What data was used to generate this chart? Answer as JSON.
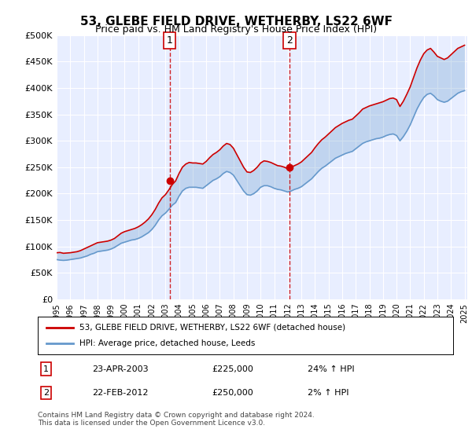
{
  "title": "53, GLEBE FIELD DRIVE, WETHERBY, LS22 6WF",
  "subtitle": "Price paid vs. HM Land Registry's House Price Index (HPI)",
  "footer": "Contains HM Land Registry data © Crown copyright and database right 2024.\nThis data is licensed under the Open Government Licence v3.0.",
  "legend_line1": "53, GLEBE FIELD DRIVE, WETHERBY, LS22 6WF (detached house)",
  "legend_line2": "HPI: Average price, detached house, Leeds",
  "sale1_date": "23-APR-2003",
  "sale1_price": 225000,
  "sale1_pct": "24% ↑ HPI",
  "sale2_date": "22-FEB-2012",
  "sale2_price": 250000,
  "sale2_pct": "2% ↑ HPI",
  "sale1_x": 2003.31,
  "sale2_x": 2012.13,
  "ylim": [
    0,
    500000
  ],
  "yticks": [
    0,
    50000,
    100000,
    150000,
    200000,
    250000,
    300000,
    350000,
    400000,
    450000,
    500000
  ],
  "ytick_labels": [
    "£0",
    "£50K",
    "£100K",
    "£150K",
    "£200K",
    "£250K",
    "£300K",
    "£350K",
    "£400K",
    "£450K",
    "£500K"
  ],
  "background_color": "#f0f4ff",
  "plot_bg": "#e8eeff",
  "red_color": "#cc0000",
  "blue_color": "#6699cc",
  "hpi_data": {
    "years": [
      1995.0,
      1995.25,
      1995.5,
      1995.75,
      1996.0,
      1996.25,
      1996.5,
      1996.75,
      1997.0,
      1997.25,
      1997.5,
      1997.75,
      1998.0,
      1998.25,
      1998.5,
      1998.75,
      1999.0,
      1999.25,
      1999.5,
      1999.75,
      2000.0,
      2000.25,
      2000.5,
      2000.75,
      2001.0,
      2001.25,
      2001.5,
      2001.75,
      2002.0,
      2002.25,
      2002.5,
      2002.75,
      2003.0,
      2003.25,
      2003.5,
      2003.75,
      2004.0,
      2004.25,
      2004.5,
      2004.75,
      2005.0,
      2005.25,
      2005.5,
      2005.75,
      2006.0,
      2006.25,
      2006.5,
      2006.75,
      2007.0,
      2007.25,
      2007.5,
      2007.75,
      2008.0,
      2008.25,
      2008.5,
      2008.75,
      2009.0,
      2009.25,
      2009.5,
      2009.75,
      2010.0,
      2010.25,
      2010.5,
      2010.75,
      2011.0,
      2011.25,
      2011.5,
      2011.75,
      2012.0,
      2012.25,
      2012.5,
      2012.75,
      2013.0,
      2013.25,
      2013.5,
      2013.75,
      2014.0,
      2014.25,
      2014.5,
      2014.75,
      2015.0,
      2015.25,
      2015.5,
      2015.75,
      2016.0,
      2016.25,
      2016.5,
      2016.75,
      2017.0,
      2017.25,
      2017.5,
      2017.75,
      2018.0,
      2018.25,
      2018.5,
      2018.75,
      2019.0,
      2019.25,
      2019.5,
      2019.75,
      2020.0,
      2020.25,
      2020.5,
      2020.75,
      2021.0,
      2021.25,
      2021.5,
      2021.75,
      2022.0,
      2022.25,
      2022.5,
      2022.75,
      2023.0,
      2023.25,
      2023.5,
      2023.75,
      2024.0,
      2024.25,
      2024.5,
      2024.75,
      2025.0
    ],
    "values": [
      75000,
      74000,
      73500,
      74000,
      75000,
      76000,
      77000,
      78000,
      80000,
      82000,
      85000,
      87000,
      90000,
      91000,
      92000,
      93000,
      95000,
      98000,
      102000,
      106000,
      108000,
      110000,
      112000,
      113000,
      115000,
      118000,
      122000,
      126000,
      132000,
      140000,
      150000,
      158000,
      163000,
      170000,
      178000,
      183000,
      195000,
      205000,
      210000,
      212000,
      212000,
      212000,
      211000,
      210000,
      215000,
      220000,
      225000,
      228000,
      232000,
      238000,
      242000,
      240000,
      235000,
      225000,
      215000,
      205000,
      198000,
      197000,
      200000,
      205000,
      212000,
      215000,
      215000,
      213000,
      210000,
      208000,
      207000,
      205000,
      203000,
      205000,
      208000,
      210000,
      213000,
      218000,
      223000,
      228000,
      235000,
      242000,
      248000,
      252000,
      257000,
      262000,
      267000,
      270000,
      273000,
      276000,
      278000,
      280000,
      285000,
      290000,
      295000,
      298000,
      300000,
      302000,
      304000,
      305000,
      307000,
      310000,
      312000,
      313000,
      310000,
      300000,
      308000,
      318000,
      330000,
      345000,
      360000,
      372000,
      382000,
      388000,
      390000,
      385000,
      378000,
      375000,
      373000,
      375000,
      380000,
      385000,
      390000,
      393000,
      395000
    ]
  },
  "price_data": {
    "years": [
      1995.0,
      1995.25,
      1995.5,
      1995.75,
      1996.0,
      1996.25,
      1996.5,
      1996.75,
      1997.0,
      1997.25,
      1997.5,
      1997.75,
      1998.0,
      1998.25,
      1998.5,
      1998.75,
      1999.0,
      1999.25,
      1999.5,
      1999.75,
      2000.0,
      2000.25,
      2000.5,
      2000.75,
      2001.0,
      2001.25,
      2001.5,
      2001.75,
      2002.0,
      2002.25,
      2002.5,
      2002.75,
      2003.0,
      2003.25,
      2003.5,
      2003.75,
      2004.0,
      2004.25,
      2004.5,
      2004.75,
      2005.0,
      2005.25,
      2005.5,
      2005.75,
      2006.0,
      2006.25,
      2006.5,
      2006.75,
      2007.0,
      2007.25,
      2007.5,
      2007.75,
      2008.0,
      2008.25,
      2008.5,
      2008.75,
      2009.0,
      2009.25,
      2009.5,
      2009.75,
      2010.0,
      2010.25,
      2010.5,
      2010.75,
      2011.0,
      2011.25,
      2011.5,
      2011.75,
      2012.0,
      2012.25,
      2012.5,
      2012.75,
      2013.0,
      2013.25,
      2013.5,
      2013.75,
      2014.0,
      2014.25,
      2014.5,
      2014.75,
      2015.0,
      2015.25,
      2015.5,
      2015.75,
      2016.0,
      2016.25,
      2016.5,
      2016.75,
      2017.0,
      2017.25,
      2017.5,
      2017.75,
      2018.0,
      2018.25,
      2018.5,
      2018.75,
      2019.0,
      2019.25,
      2019.5,
      2019.75,
      2020.0,
      2020.25,
      2020.5,
      2020.75,
      2021.0,
      2021.25,
      2021.5,
      2021.75,
      2022.0,
      2022.25,
      2022.5,
      2022.75,
      2023.0,
      2023.25,
      2023.5,
      2023.75,
      2024.0,
      2024.25,
      2024.5,
      2024.75,
      2025.0
    ],
    "values": [
      88000,
      88500,
      87000,
      87500,
      88000,
      89000,
      90000,
      92000,
      95000,
      98000,
      101000,
      104000,
      107000,
      108000,
      109000,
      110000,
      112000,
      115000,
      120000,
      125000,
      128000,
      130000,
      132000,
      134000,
      137000,
      141000,
      146000,
      152000,
      160000,
      170000,
      182000,
      192000,
      198000,
      207000,
      217000,
      224000,
      238000,
      250000,
      256000,
      259000,
      258000,
      258000,
      257000,
      256000,
      261000,
      268000,
      274000,
      278000,
      283000,
      290000,
      295000,
      293000,
      286000,
      274000,
      262000,
      250000,
      241000,
      240000,
      244000,
      250000,
      258000,
      262000,
      261000,
      259000,
      256000,
      253000,
      252000,
      250000,
      247000,
      250000,
      253000,
      256000,
      260000,
      266000,
      272000,
      278000,
      287000,
      295000,
      302000,
      307000,
      313000,
      319000,
      325000,
      329000,
      333000,
      336000,
      339000,
      341000,
      347000,
      353000,
      360000,
      363000,
      366000,
      368000,
      370000,
      372000,
      374000,
      377000,
      380000,
      381000,
      378000,
      365000,
      375000,
      388000,
      402000,
      420000,
      438000,
      453000,
      465000,
      472000,
      475000,
      468000,
      460000,
      457000,
      454000,
      457000,
      463000,
      469000,
      475000,
      478000,
      481000
    ]
  }
}
